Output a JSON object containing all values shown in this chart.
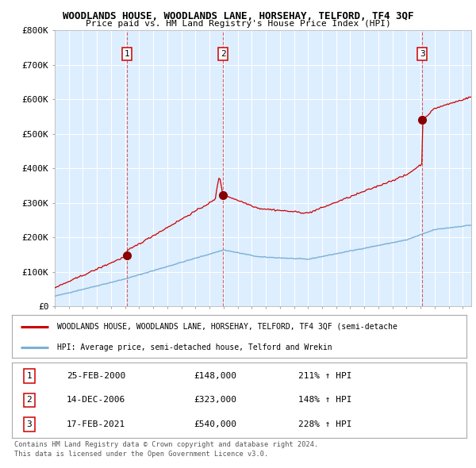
{
  "title": "WOODLANDS HOUSE, WOODLANDS LANE, HORSEHAY, TELFORD, TF4 3QF",
  "subtitle": "Price paid vs. HM Land Registry's House Price Index (HPI)",
  "title_color": "#000000",
  "background_color": "#ffffff",
  "plot_bg_color": "#ddeeff",
  "grid_color": "#ffffff",
  "red_line_color": "#cc0000",
  "blue_line_color": "#7bafd4",
  "sale_marker_color": "#880000",
  "ylim": [
    0,
    800000
  ],
  "yticks": [
    0,
    100000,
    200000,
    300000,
    400000,
    500000,
    600000,
    700000,
    800000
  ],
  "ytick_labels": [
    "£0",
    "£100K",
    "£200K",
    "£300K",
    "£400K",
    "£500K",
    "£600K",
    "£700K",
    "£800K"
  ],
  "sale_dates": [
    2000.15,
    2006.96,
    2021.12
  ],
  "sale_prices": [
    148000,
    323000,
    540000
  ],
  "sale_labels": [
    "1",
    "2",
    "3"
  ],
  "sale_annotations": [
    {
      "label": "1",
      "date": "25-FEB-2000",
      "price": "£148,000",
      "pct": "211% ↑ HPI"
    },
    {
      "label": "2",
      "date": "14-DEC-2006",
      "price": "£323,000",
      "pct": "148% ↑ HPI"
    },
    {
      "label": "3",
      "date": "17-FEB-2021",
      "price": "£540,000",
      "pct": "228% ↑ HPI"
    }
  ],
  "legend_red_label": "WOODLANDS HOUSE, WOODLANDS LANE, HORSEHAY, TELFORD, TF4 3QF (semi-detache",
  "legend_blue_label": "HPI: Average price, semi-detached house, Telford and Wrekin",
  "footer1": "Contains HM Land Registry data © Crown copyright and database right 2024.",
  "footer2": "This data is licensed under the Open Government Licence v3.0.",
  "dashed_line_color": "#cc0000"
}
